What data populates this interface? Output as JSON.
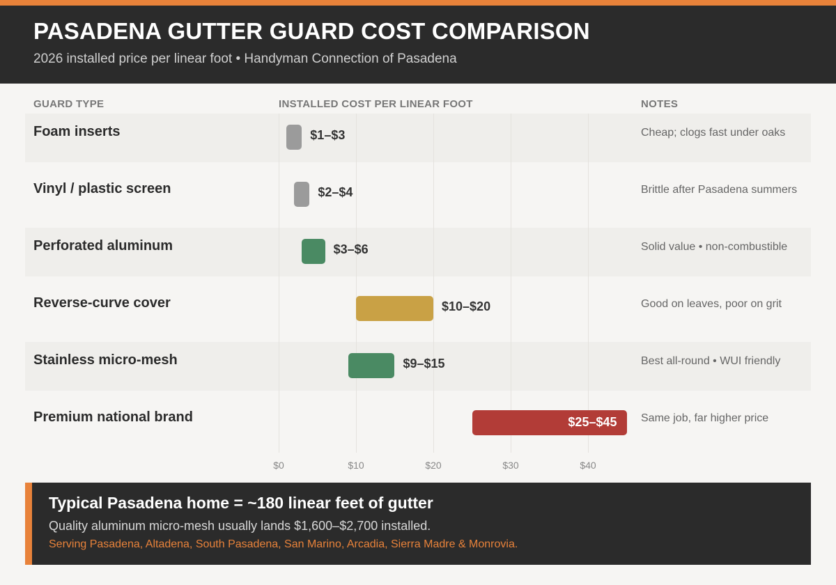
{
  "header": {
    "title": "PASADENA GUTTER GUARD COST COMPARISON",
    "subtitle": "2026 installed price per linear foot  •  Handyman Connection of Pasadena"
  },
  "columns": {
    "guard_type": "GUARD TYPE",
    "cost": "INSTALLED COST PER LINEAR FOOT",
    "notes": "NOTES"
  },
  "colors": {
    "accent": "#e8823a",
    "dark": "#2b2b2b",
    "gray_bar": "#9b9b9b",
    "green_bar": "#4a8a63",
    "gold_bar": "#c9a145",
    "red_bar": "#b23c37"
  },
  "chart_data": {
    "type": "bar",
    "orientation": "horizontal-range",
    "title": "PASADENA GUTTER GUARD COST COMPARISON",
    "subtitle": "2026 installed price per linear foot  •  Handyman Connection of Pasadena",
    "xlabel": "INSTALLED COST PER LINEAR FOOT",
    "xlim": [
      0,
      45
    ],
    "xticks": [
      "$0",
      "$10",
      "$20",
      "$30",
      "$40"
    ],
    "xtick_values": [
      0,
      10,
      20,
      30,
      40
    ],
    "grid": true,
    "categories": [
      "Foam inserts",
      "Vinyl / plastic screen",
      "Perforated aluminum",
      "Reverse-curve cover",
      "Stainless micro-mesh",
      "Premium national brand"
    ],
    "ranges": [
      {
        "low": 1,
        "high": 3,
        "label": "$1–$3",
        "color": "#9b9b9b",
        "note": "Cheap; clogs fast under oaks"
      },
      {
        "low": 2,
        "high": 4,
        "label": "$2–$4",
        "color": "#9b9b9b",
        "note": "Brittle after Pasadena summers"
      },
      {
        "low": 3,
        "high": 6,
        "label": "$3–$6",
        "color": "#4a8a63",
        "note": "Solid value • non-combustible"
      },
      {
        "low": 10,
        "high": 20,
        "label": "$10–$20",
        "color": "#c9a145",
        "note": "Good on leaves, poor on grit"
      },
      {
        "low": 9,
        "high": 15,
        "label": "$9–$15",
        "color": "#4a8a63",
        "note": "Best all-round • WUI friendly"
      },
      {
        "low": 25,
        "high": 45,
        "label": "$25–$45",
        "color": "#b23c37",
        "note": "Same job, far higher price",
        "label_inside": true
      }
    ]
  },
  "footer": {
    "headline": "Typical Pasadena home = ~180 linear feet of gutter",
    "detail": "Quality aluminum micro-mesh usually lands $1,600–$2,700 installed.",
    "service_area": "Serving Pasadena, Altadena, South Pasadena, San Marino, Arcadia, Sierra Madre & Monrovia."
  }
}
